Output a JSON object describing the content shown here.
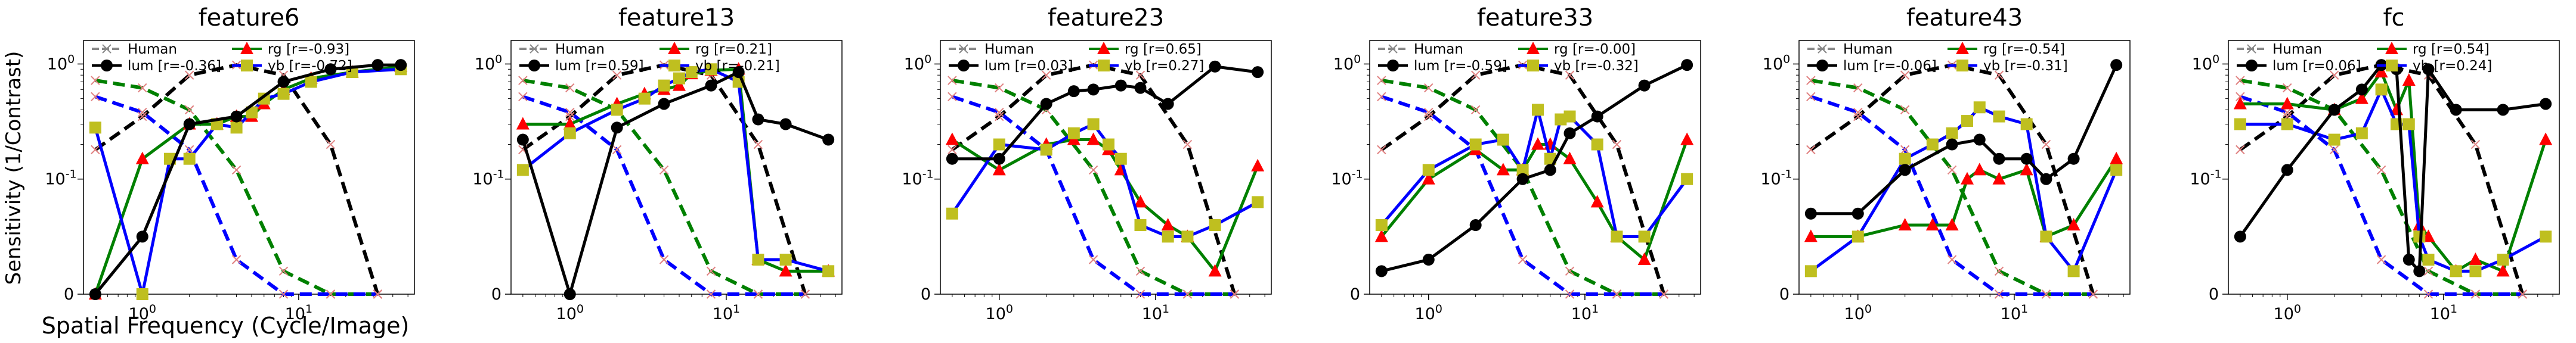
{
  "figure": {
    "ylabel": "Sensitivity (1/Contrast)",
    "xlabel": "Spatial Frequency (Cycle/Image)"
  },
  "colors": {
    "human": "#888888",
    "lum": "#000000",
    "rg": "#008000",
    "rg_marker": "#ff0000",
    "yb": "#0000ff",
    "yb_marker": "#bfbf1f",
    "human_ref_lum": "#000000",
    "human_ref_rg": "#008000",
    "human_ref_yb": "#0000ff"
  },
  "chart_data": [
    {
      "type": "line",
      "title": "feature6",
      "x_scale": "log",
      "y_scale": "symlog",
      "xlim": [
        0.42,
        55
      ],
      "ylim": [
        0,
        1.6
      ],
      "x_ticks": [
        "10^0",
        "10^1"
      ],
      "y_ticks": [
        "0",
        "10^-1",
        "10^0"
      ],
      "legend": [
        "Human",
        "lum [r=-0.36]",
        "rg   [r=-0.93]",
        "yb   [r=-0.72]"
      ],
      "series": [
        {
          "name": "lum",
          "x": [
            0.5,
            1,
            2,
            4,
            8,
            16,
            32,
            45
          ],
          "y": [
            0,
            0.05,
            0.3,
            0.35,
            0.7,
            0.9,
            0.98,
            0.98
          ]
        },
        {
          "name": "rg",
          "x": [
            0.5,
            1,
            2,
            3,
            4,
            5,
            6,
            8,
            12,
            22,
            45
          ],
          "y": [
            0,
            0.15,
            0.3,
            0.3,
            0.35,
            0.35,
            0.45,
            0.6,
            0.75,
            0.85,
            0.95
          ]
        },
        {
          "name": "yb",
          "x": [
            0.5,
            1,
            1.5,
            2,
            3,
            4,
            5,
            6,
            8,
            12,
            22,
            45
          ],
          "y": [
            0.28,
            0,
            0.15,
            0.15,
            0.3,
            0.28,
            0.38,
            0.5,
            0.55,
            0.7,
            0.85,
            0.9
          ]
        },
        {
          "name": "human-lum",
          "x": [
            0.5,
            1,
            2,
            4,
            8,
            16,
            32
          ],
          "y": [
            0.18,
            0.35,
            0.8,
            0.98,
            0.8,
            0.2,
            0
          ]
        },
        {
          "name": "human-rg",
          "x": [
            0.5,
            1,
            2,
            4,
            8,
            16,
            32
          ],
          "y": [
            0.72,
            0.62,
            0.4,
            0.12,
            0.02,
            0,
            0
          ]
        },
        {
          "name": "human-yb",
          "x": [
            0.5,
            1,
            2,
            4,
            8,
            16,
            32
          ],
          "y": [
            0.52,
            0.38,
            0.18,
            0.03,
            0,
            0,
            0
          ]
        }
      ]
    },
    {
      "type": "line",
      "title": "feature13",
      "x_scale": "log",
      "y_scale": "symlog",
      "xlim": [
        0.42,
        55
      ],
      "ylim": [
        0,
        1.6
      ],
      "x_ticks": [
        "10^0",
        "10^1"
      ],
      "y_ticks": [
        "0",
        "10^-1",
        "10^0"
      ],
      "legend": [
        "Human",
        "lum [r=0.59]",
        "rg   [r=0.21]",
        "yb   [r=-0.21]"
      ],
      "series": [
        {
          "name": "lum",
          "x": [
            0.5,
            1,
            2,
            4,
            8,
            12,
            16,
            24,
            45
          ],
          "y": [
            0.22,
            0,
            0.28,
            0.45,
            0.65,
            0.85,
            0.33,
            0.3,
            0.22
          ]
        },
        {
          "name": "rg",
          "x": [
            0.5,
            1,
            2,
            3,
            4,
            5,
            6,
            8,
            12,
            16,
            24,
            45
          ],
          "y": [
            0.3,
            0.3,
            0.45,
            0.55,
            0.6,
            0.65,
            0.82,
            0.88,
            0.9,
            0.03,
            0.02,
            0.02
          ]
        },
        {
          "name": "yb",
          "x": [
            0.5,
            1,
            2,
            3,
            4,
            5,
            6,
            8,
            12,
            16,
            24,
            45
          ],
          "y": [
            0.12,
            0.25,
            0.4,
            0.5,
            0.65,
            0.75,
            0.85,
            0.9,
            0.7,
            0.03,
            0.03,
            0.02
          ]
        },
        {
          "name": "human-lum",
          "x": [
            0.5,
            1,
            2,
            4,
            8,
            16,
            32
          ],
          "y": [
            0.18,
            0.35,
            0.8,
            0.98,
            0.8,
            0.2,
            0
          ]
        },
        {
          "name": "human-rg",
          "x": [
            0.5,
            1,
            2,
            4,
            8,
            16,
            32
          ],
          "y": [
            0.72,
            0.62,
            0.4,
            0.12,
            0.02,
            0,
            0
          ]
        },
        {
          "name": "human-yb",
          "x": [
            0.5,
            1,
            2,
            4,
            8,
            16,
            32
          ],
          "y": [
            0.52,
            0.38,
            0.18,
            0.03,
            0,
            0,
            0
          ]
        }
      ]
    },
    {
      "type": "line",
      "title": "feature23",
      "x_scale": "log",
      "y_scale": "symlog",
      "xlim": [
        0.42,
        55
      ],
      "ylim": [
        0,
        1.6
      ],
      "x_ticks": [
        "10^0",
        "10^1"
      ],
      "y_ticks": [
        "0",
        "10^-1",
        "10^0"
      ],
      "legend": [
        "Human",
        "lum [r=0.03]",
        "rg   [r=0.65]",
        "yb   [r=0.27]"
      ],
      "series": [
        {
          "name": "lum",
          "x": [
            0.5,
            1,
            2,
            3,
            4,
            6,
            8,
            12,
            24,
            45
          ],
          "y": [
            0.15,
            0.15,
            0.45,
            0.58,
            0.6,
            0.65,
            0.62,
            0.45,
            0.95,
            0.85
          ]
        },
        {
          "name": "rg",
          "x": [
            0.5,
            1,
            2,
            3,
            4,
            5,
            6,
            8,
            12,
            16,
            24,
            45
          ],
          "y": [
            0.22,
            0.12,
            0.2,
            0.22,
            0.22,
            0.18,
            0.12,
            0.08,
            0.06,
            0.05,
            0.02,
            0.13
          ]
        },
        {
          "name": "yb",
          "x": [
            0.5,
            1,
            2,
            3,
            4,
            5,
            6,
            8,
            12,
            16,
            24,
            45
          ],
          "y": [
            0.07,
            0.2,
            0.18,
            0.25,
            0.3,
            0.2,
            0.15,
            0.06,
            0.05,
            0.05,
            0.06,
            0.08
          ]
        },
        {
          "name": "human-lum",
          "x": [
            0.5,
            1,
            2,
            4,
            8,
            16,
            32
          ],
          "y": [
            0.18,
            0.35,
            0.8,
            0.98,
            0.8,
            0.2,
            0
          ]
        },
        {
          "name": "human-rg",
          "x": [
            0.5,
            1,
            2,
            4,
            8,
            16,
            32
          ],
          "y": [
            0.72,
            0.62,
            0.4,
            0.12,
            0.02,
            0,
            0
          ]
        },
        {
          "name": "human-yb",
          "x": [
            0.5,
            1,
            2,
            4,
            8,
            16,
            32
          ],
          "y": [
            0.52,
            0.38,
            0.18,
            0.03,
            0,
            0,
            0
          ]
        }
      ]
    },
    {
      "type": "line",
      "title": "feature33",
      "x_scale": "log",
      "y_scale": "symlog",
      "xlim": [
        0.42,
        55
      ],
      "ylim": [
        0,
        1.6
      ],
      "x_ticks": [
        "10^0",
        "10^1"
      ],
      "y_ticks": [
        "0",
        "10^-1",
        "10^0"
      ],
      "legend": [
        "Human",
        "lum [r=-0.59]",
        "rg   [r=-0.00]",
        "yb   [r=-0.32]"
      ],
      "series": [
        {
          "name": "lum",
          "x": [
            0.5,
            1,
            2,
            4,
            6,
            8,
            12,
            24,
            45
          ],
          "y": [
            0.02,
            0.03,
            0.06,
            0.1,
            0.12,
            0.25,
            0.35,
            0.65,
            0.98
          ]
        },
        {
          "name": "rg",
          "x": [
            0.5,
            1,
            2,
            3,
            4,
            5,
            6,
            8,
            12,
            16,
            24,
            45
          ],
          "y": [
            0.05,
            0.1,
            0.18,
            0.12,
            0.12,
            0.2,
            0.2,
            0.15,
            0.08,
            0.05,
            0.03,
            0.22
          ]
        },
        {
          "name": "yb",
          "x": [
            0.5,
            1,
            2,
            3,
            4,
            5,
            6,
            7,
            8,
            12,
            16,
            24,
            45
          ],
          "y": [
            0.06,
            0.12,
            0.2,
            0.22,
            0.12,
            0.4,
            0.15,
            0.33,
            0.35,
            0.2,
            0.05,
            0.05,
            0.1
          ]
        },
        {
          "name": "human-lum",
          "x": [
            0.5,
            1,
            2,
            4,
            8,
            16,
            32
          ],
          "y": [
            0.18,
            0.35,
            0.8,
            0.98,
            0.8,
            0.2,
            0
          ]
        },
        {
          "name": "human-rg",
          "x": [
            0.5,
            1,
            2,
            4,
            8,
            16,
            32
          ],
          "y": [
            0.72,
            0.62,
            0.4,
            0.12,
            0.02,
            0,
            0
          ]
        },
        {
          "name": "human-yb",
          "x": [
            0.5,
            1,
            2,
            4,
            8,
            16,
            32
          ],
          "y": [
            0.52,
            0.38,
            0.18,
            0.03,
            0,
            0,
            0
          ]
        }
      ]
    },
    {
      "type": "line",
      "title": "feature43",
      "x_scale": "log",
      "y_scale": "symlog",
      "xlim": [
        0.42,
        55
      ],
      "ylim": [
        0,
        1.6
      ],
      "x_ticks": [
        "10^0",
        "10^1"
      ],
      "y_ticks": [
        "0",
        "10^-1",
        "10^0"
      ],
      "legend": [
        "Human",
        "lum [r=-0.06]",
        "rg   [r=-0.54]",
        "yb   [r=-0.31]"
      ],
      "series": [
        {
          "name": "lum",
          "x": [
            0.5,
            1,
            2,
            4,
            6,
            8,
            12,
            16,
            24,
            45
          ],
          "y": [
            0.07,
            0.07,
            0.12,
            0.2,
            0.22,
            0.15,
            0.15,
            0.1,
            0.15,
            0.98
          ]
        },
        {
          "name": "rg",
          "x": [
            0.5,
            1,
            2,
            3,
            4,
            5,
            6,
            8,
            12,
            16,
            24,
            45
          ],
          "y": [
            0.05,
            0.05,
            0.06,
            0.06,
            0.06,
            0.1,
            0.12,
            0.1,
            0.12,
            0.05,
            0.06,
            0.15
          ]
        },
        {
          "name": "yb",
          "x": [
            0.5,
            1,
            2,
            3,
            4,
            5,
            6,
            8,
            12,
            16,
            24,
            45
          ],
          "y": [
            0.02,
            0.05,
            0.15,
            0.2,
            0.25,
            0.32,
            0.42,
            0.35,
            0.3,
            0.05,
            0.02,
            0.12
          ]
        },
        {
          "name": "human-lum",
          "x": [
            0.5,
            1,
            2,
            4,
            8,
            16,
            32
          ],
          "y": [
            0.18,
            0.35,
            0.8,
            0.98,
            0.8,
            0.2,
            0
          ]
        },
        {
          "name": "human-rg",
          "x": [
            0.5,
            1,
            2,
            4,
            8,
            16,
            32
          ],
          "y": [
            0.72,
            0.62,
            0.4,
            0.12,
            0.02,
            0,
            0
          ]
        },
        {
          "name": "human-yb",
          "x": [
            0.5,
            1,
            2,
            4,
            8,
            16,
            32
          ],
          "y": [
            0.52,
            0.38,
            0.18,
            0.03,
            0,
            0,
            0
          ]
        }
      ]
    },
    {
      "type": "line",
      "title": "fc",
      "x_scale": "log",
      "y_scale": "symlog",
      "xlim": [
        0.42,
        55
      ],
      "ylim": [
        0,
        1.6
      ],
      "x_ticks": [
        "10^0",
        "10^1"
      ],
      "y_ticks": [
        "0",
        "10^-1",
        "10^0"
      ],
      "legend": [
        "Human",
        "lum [r=0.06]",
        "rg   [r=0.54]",
        "yb   [r=0.24]"
      ],
      "series": [
        {
          "name": "lum",
          "x": [
            0.5,
            1,
            2,
            3,
            4,
            5,
            6,
            7,
            8,
            12,
            24,
            45
          ],
          "y": [
            0.05,
            0.12,
            0.4,
            0.6,
            0.98,
            0.9,
            0.03,
            0.02,
            0.9,
            0.4,
            0.4,
            0.45
          ]
        },
        {
          "name": "rg",
          "x": [
            0.5,
            1,
            2,
            3,
            4,
            5,
            6,
            7,
            8,
            12,
            16,
            24,
            45
          ],
          "y": [
            0.45,
            0.45,
            0.4,
            0.5,
            0.85,
            0.4,
            0.72,
            0.06,
            0.05,
            0.02,
            0.03,
            0.02,
            0.22
          ]
        },
        {
          "name": "yb",
          "x": [
            0.5,
            1,
            2,
            3,
            4,
            5,
            6,
            7,
            8,
            12,
            16,
            24,
            45
          ],
          "y": [
            0.3,
            0.3,
            0.22,
            0.25,
            0.6,
            0.3,
            0.3,
            0.05,
            0.03,
            0.02,
            0.02,
            0.03,
            0.05
          ]
        },
        {
          "name": "human-lum",
          "x": [
            0.5,
            1,
            2,
            4,
            8,
            16,
            32
          ],
          "y": [
            0.18,
            0.35,
            0.8,
            0.98,
            0.8,
            0.2,
            0
          ]
        },
        {
          "name": "human-rg",
          "x": [
            0.5,
            1,
            2,
            4,
            8,
            16,
            32
          ],
          "y": [
            0.72,
            0.62,
            0.4,
            0.12,
            0.02,
            0,
            0
          ]
        },
        {
          "name": "human-yb",
          "x": [
            0.5,
            1,
            2,
            4,
            8,
            16,
            32
          ],
          "y": [
            0.52,
            0.38,
            0.18,
            0.03,
            0,
            0,
            0
          ]
        }
      ]
    }
  ]
}
